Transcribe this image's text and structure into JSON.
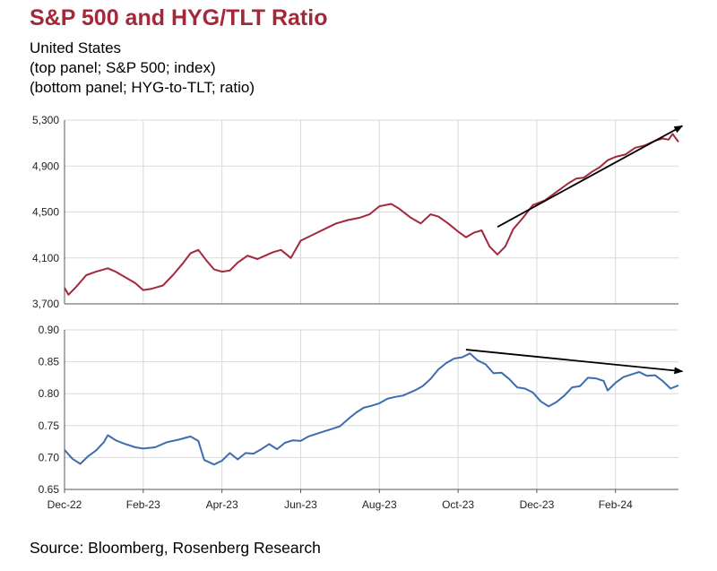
{
  "header": {
    "title": "S&P 500 and HYG/TLT Ratio",
    "subtitle1": "United States",
    "subtitle2": "(top panel; S&P 500; index)",
    "subtitle3": "(bottom panel; HYG-to-TLT; ratio)"
  },
  "footer": {
    "source": "Source: Bloomberg, Rosenberg Research"
  },
  "colors": {
    "top_line": "#a3293a",
    "bottom_line": "#3c6db0",
    "arrow": "#000000",
    "grid": "#d9d9d9",
    "title": "#a3293a"
  },
  "chart_data": [
    {
      "type": "line",
      "panel": "top",
      "series_name": "S&P 500",
      "unit": "index",
      "ylim": [
        3700,
        5300
      ],
      "yticks": [
        3700,
        4100,
        4500,
        4900,
        5300
      ],
      "ytick_labels": [
        "3,700",
        "4,100",
        "4,500",
        "4,900",
        "5,300"
      ],
      "x_range_months": [
        0,
        15.6
      ],
      "points": [
        [
          0.0,
          3840
        ],
        [
          0.1,
          3780
        ],
        [
          0.3,
          3850
        ],
        [
          0.55,
          3950
        ],
        [
          0.8,
          3980
        ],
        [
          1.1,
          4010
        ],
        [
          1.3,
          3980
        ],
        [
          1.55,
          3930
        ],
        [
          1.8,
          3880
        ],
        [
          2.0,
          3820
        ],
        [
          2.2,
          3830
        ],
        [
          2.5,
          3860
        ],
        [
          2.75,
          3950
        ],
        [
          3.0,
          4050
        ],
        [
          3.2,
          4140
        ],
        [
          3.4,
          4170
        ],
        [
          3.6,
          4080
        ],
        [
          3.8,
          4000
        ],
        [
          4.0,
          3980
        ],
        [
          4.2,
          3990
        ],
        [
          4.4,
          4060
        ],
        [
          4.65,
          4120
        ],
        [
          4.9,
          4090
        ],
        [
          5.1,
          4120
        ],
        [
          5.3,
          4150
        ],
        [
          5.5,
          4170
        ],
        [
          5.75,
          4100
        ],
        [
          6.0,
          4250
        ],
        [
          6.3,
          4300
        ],
        [
          6.6,
          4350
        ],
        [
          6.9,
          4400
        ],
        [
          7.2,
          4430
        ],
        [
          7.5,
          4450
        ],
        [
          7.75,
          4480
        ],
        [
          8.0,
          4550
        ],
        [
          8.3,
          4570
        ],
        [
          8.5,
          4530
        ],
        [
          8.8,
          4450
        ],
        [
          9.05,
          4400
        ],
        [
          9.3,
          4480
        ],
        [
          9.5,
          4460
        ],
        [
          9.75,
          4400
        ],
        [
          10.0,
          4330
        ],
        [
          10.2,
          4280
        ],
        [
          10.4,
          4320
        ],
        [
          10.6,
          4340
        ],
        [
          10.8,
          4200
        ],
        [
          11.0,
          4130
        ],
        [
          11.2,
          4200
        ],
        [
          11.4,
          4350
        ],
        [
          11.65,
          4450
        ],
        [
          11.9,
          4560
        ],
        [
          12.2,
          4600
        ],
        [
          12.4,
          4650
        ],
        [
          12.6,
          4700
        ],
        [
          12.8,
          4750
        ],
        [
          13.0,
          4790
        ],
        [
          13.2,
          4800
        ],
        [
          13.4,
          4850
        ],
        [
          13.6,
          4890
        ],
        [
          13.8,
          4950
        ],
        [
          14.0,
          4980
        ],
        [
          14.25,
          5000
        ],
        [
          14.5,
          5060
        ],
        [
          14.75,
          5080
        ],
        [
          15.0,
          5120
        ],
        [
          15.2,
          5140
        ],
        [
          15.35,
          5130
        ],
        [
          15.45,
          5180
        ],
        [
          15.6,
          5110
        ]
      ],
      "annotation": "upward trend arrow",
      "arrow": {
        "from": [
          11.0,
          4370
        ],
        "to": [
          15.7,
          5250
        ]
      }
    },
    {
      "type": "line",
      "panel": "bottom",
      "series_name": "HYG-to-TLT",
      "unit": "ratio",
      "ylim": [
        0.65,
        0.9
      ],
      "yticks": [
        0.65,
        0.7,
        0.75,
        0.8,
        0.85,
        0.9
      ],
      "ytick_labels": [
        "0.65",
        "0.70",
        "0.75",
        "0.80",
        "0.85",
        "0.90"
      ],
      "x_range_months": [
        0,
        15.6
      ],
      "x_ticks": [
        0,
        2,
        4,
        6,
        8,
        10,
        12,
        14
      ],
      "x_tick_labels": [
        "Dec-22",
        "Feb-23",
        "Apr-23",
        "Jun-23",
        "Aug-23",
        "Oct-23",
        "Dec-23",
        "Feb-24"
      ],
      "points": [
        [
          0.0,
          0.712
        ],
        [
          0.2,
          0.698
        ],
        [
          0.4,
          0.69
        ],
        [
          0.6,
          0.702
        ],
        [
          0.8,
          0.711
        ],
        [
          1.0,
          0.724
        ],
        [
          1.1,
          0.735
        ],
        [
          1.3,
          0.727
        ],
        [
          1.5,
          0.722
        ],
        [
          1.8,
          0.716
        ],
        [
          2.0,
          0.714
        ],
        [
          2.3,
          0.716
        ],
        [
          2.6,
          0.724
        ],
        [
          2.9,
          0.728
        ],
        [
          3.2,
          0.733
        ],
        [
          3.4,
          0.726
        ],
        [
          3.55,
          0.696
        ],
        [
          3.8,
          0.689
        ],
        [
          4.0,
          0.695
        ],
        [
          4.2,
          0.707
        ],
        [
          4.4,
          0.697
        ],
        [
          4.6,
          0.707
        ],
        [
          4.8,
          0.706
        ],
        [
          5.0,
          0.713
        ],
        [
          5.2,
          0.721
        ],
        [
          5.4,
          0.713
        ],
        [
          5.6,
          0.723
        ],
        [
          5.8,
          0.727
        ],
        [
          6.0,
          0.726
        ],
        [
          6.2,
          0.733
        ],
        [
          6.5,
          0.739
        ],
        [
          6.8,
          0.745
        ],
        [
          7.0,
          0.749
        ],
        [
          7.2,
          0.76
        ],
        [
          7.4,
          0.77
        ],
        [
          7.6,
          0.778
        ],
        [
          7.8,
          0.781
        ],
        [
          8.0,
          0.785
        ],
        [
          8.2,
          0.792
        ],
        [
          8.4,
          0.795
        ],
        [
          8.6,
          0.797
        ],
        [
          8.9,
          0.805
        ],
        [
          9.1,
          0.812
        ],
        [
          9.3,
          0.823
        ],
        [
          9.5,
          0.838
        ],
        [
          9.7,
          0.848
        ],
        [
          9.9,
          0.855
        ],
        [
          10.1,
          0.857
        ],
        [
          10.3,
          0.863
        ],
        [
          10.5,
          0.852
        ],
        [
          10.7,
          0.846
        ],
        [
          10.9,
          0.832
        ],
        [
          11.1,
          0.833
        ],
        [
          11.3,
          0.823
        ],
        [
          11.5,
          0.81
        ],
        [
          11.7,
          0.808
        ],
        [
          11.9,
          0.802
        ],
        [
          12.1,
          0.788
        ],
        [
          12.3,
          0.78
        ],
        [
          12.5,
          0.787
        ],
        [
          12.7,
          0.797
        ],
        [
          12.9,
          0.81
        ],
        [
          13.1,
          0.812
        ],
        [
          13.3,
          0.825
        ],
        [
          13.5,
          0.824
        ],
        [
          13.7,
          0.82
        ],
        [
          13.8,
          0.805
        ],
        [
          14.0,
          0.817
        ],
        [
          14.2,
          0.826
        ],
        [
          14.4,
          0.83
        ],
        [
          14.6,
          0.834
        ],
        [
          14.8,
          0.828
        ],
        [
          15.0,
          0.829
        ],
        [
          15.2,
          0.82
        ],
        [
          15.4,
          0.808
        ],
        [
          15.6,
          0.813
        ]
      ],
      "annotation": "downward trend arrow",
      "arrow": {
        "from": [
          10.2,
          0.869
        ],
        "to": [
          15.7,
          0.835
        ]
      }
    }
  ]
}
